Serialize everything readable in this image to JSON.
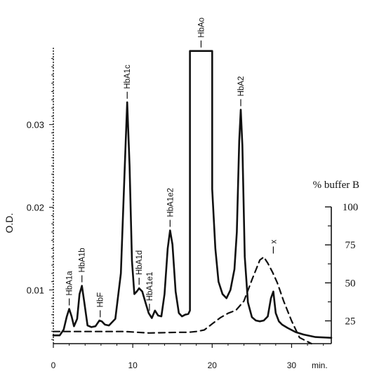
{
  "chart_data": {
    "type": "line",
    "ylabel": "O.D.",
    "y2label": "% buffer B",
    "xunit": "min.",
    "xlim": [
      0,
      35
    ],
    "ylim": [
      0.0035,
      0.0393
    ],
    "y2lim": [
      10,
      100
    ],
    "x_ticks": [
      0,
      10,
      20,
      30
    ],
    "x_tick_labels": [
      "0",
      "10",
      "20",
      "30"
    ],
    "y_ticks": [
      0.01,
      0.02,
      0.03
    ],
    "y_tick_labels": [
      "0.01",
      "0.02",
      "0.03"
    ],
    "y2_ticks": [
      25,
      50,
      75,
      100
    ],
    "y2_tick_labels": [
      "25",
      "50",
      "75",
      "100"
    ],
    "series": [
      {
        "style": "solid",
        "axis": "left",
        "x": [
          0,
          0.8,
          1.3,
          1.7,
          2.0,
          2.3,
          2.6,
          3.0,
          3.3,
          3.6,
          3.9,
          4.3,
          4.8,
          5.3,
          5.8,
          6.1,
          6.5,
          7.0,
          7.8,
          8.5,
          9.0,
          9.3,
          9.6,
          9.9,
          10.2,
          10.5,
          10.8,
          11.2,
          11.6,
          12.0,
          12.4,
          12.8,
          13.2,
          13.6,
          14.0,
          14.4,
          14.7,
          15.0,
          15.4,
          15.8,
          16.2,
          16.6,
          17.0,
          17.2,
          17.2,
          20.0,
          20.0,
          20.4,
          20.8,
          21.3,
          21.8,
          22.3,
          22.8,
          23.1,
          23.4,
          23.6,
          23.8,
          24.1,
          24.5,
          25.0,
          25.5,
          26.0,
          26.5,
          27.0,
          27.4,
          27.7,
          28.0,
          28.4,
          28.8,
          29.5,
          30.5,
          31.5,
          33.0,
          35.0
        ],
        "y": [
          0.0045,
          0.0045,
          0.0052,
          0.0068,
          0.0077,
          0.0068,
          0.0056,
          0.0065,
          0.0095,
          0.0105,
          0.0085,
          0.0057,
          0.0055,
          0.0056,
          0.0063,
          0.0062,
          0.0058,
          0.0057,
          0.0065,
          0.012,
          0.025,
          0.0327,
          0.025,
          0.0135,
          0.0095,
          0.0098,
          0.0102,
          0.0098,
          0.0085,
          0.0072,
          0.0066,
          0.0075,
          0.0069,
          0.0068,
          0.0095,
          0.015,
          0.0172,
          0.0155,
          0.0098,
          0.0072,
          0.0068,
          0.007,
          0.0071,
          0.0075,
          0.0389,
          0.0389,
          0.0222,
          0.015,
          0.011,
          0.0095,
          0.009,
          0.01,
          0.0125,
          0.017,
          0.028,
          0.0318,
          0.0275,
          0.014,
          0.0085,
          0.0067,
          0.0063,
          0.0062,
          0.0063,
          0.0068,
          0.009,
          0.0098,
          0.0072,
          0.0062,
          0.0058,
          0.0054,
          0.0049,
          0.0046,
          0.0043,
          0.0042
        ]
      },
      {
        "style": "dashed",
        "axis": "right",
        "x": [
          0,
          9,
          12,
          16,
          17,
          18,
          19,
          20,
          21,
          22,
          23,
          24,
          25,
          26,
          26.5,
          27,
          27.6,
          28.2,
          29.0,
          30.0,
          31.0,
          32.5
        ],
        "y": [
          18,
          18,
          17,
          17.5,
          17.5,
          18,
          19,
          23,
          27,
          30,
          32,
          38,
          52,
          65,
          67,
          63,
          57,
          50,
          38,
          25,
          14,
          10
        ]
      }
    ],
    "annotations": [
      {
        "label": "HbA1a",
        "x": 2.0
      },
      {
        "label": "HbA1b",
        "x": 3.6
      },
      {
        "label": "HbF",
        "x": 5.9
      },
      {
        "label": "HbA1c",
        "x": 9.3
      },
      {
        "label": "HbA1d",
        "x": 10.8
      },
      {
        "label": "HbA1e1",
        "x": 12.1
      },
      {
        "label": "HbA1e2",
        "x": 14.7
      },
      {
        "label": "HbAo",
        "x": 18.6
      },
      {
        "label": "HbA2",
        "x": 23.6
      },
      {
        "label": "x",
        "x": 27.7
      }
    ]
  }
}
